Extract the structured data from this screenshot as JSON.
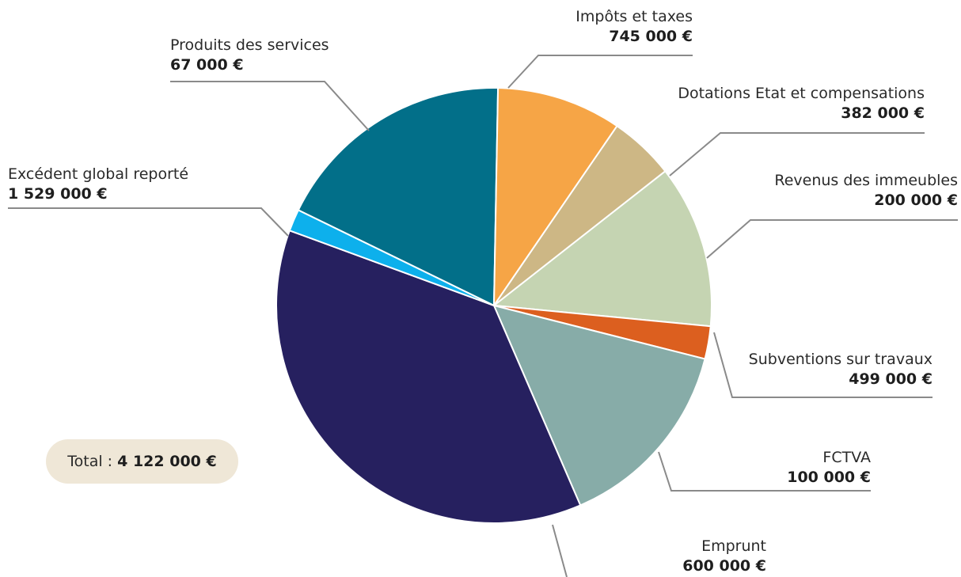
{
  "chart_data": {
    "type": "pie",
    "unit": "€",
    "slices": [
      {
        "label": "Impôts et taxes",
        "value": 745000,
        "value_text": "745 000 €",
        "color": "#026f89"
      },
      {
        "label": "Dotations Etat et compensations",
        "value": 382000,
        "value_text": "382 000 €",
        "color": "#f6a546"
      },
      {
        "label": "Revenus des immeubles",
        "value": 200000,
        "value_text": "200 000 €",
        "color": "#cdb785"
      },
      {
        "label": "Subventions sur travaux",
        "value": 499000,
        "value_text": "499 000 €",
        "color": "#c5d4b2"
      },
      {
        "label": "FCTVA",
        "value": 100000,
        "value_text": "100 000 €",
        "color": "#dc5f1f"
      },
      {
        "label": "Emprunt",
        "value": 600000,
        "value_text": "600 000 €",
        "color": "#87aca8"
      },
      {
        "label": "Excédent global reporté",
        "value": 1529000,
        "value_text": "1 529 000 €",
        "color": "#26205f"
      },
      {
        "label": "Produits des services",
        "value": 67000,
        "value_text": "67 000 €",
        "color": "#0db0ec"
      }
    ],
    "total": {
      "label": "Total :",
      "value": 4122000,
      "value_text": "4 122 000 €"
    }
  }
}
